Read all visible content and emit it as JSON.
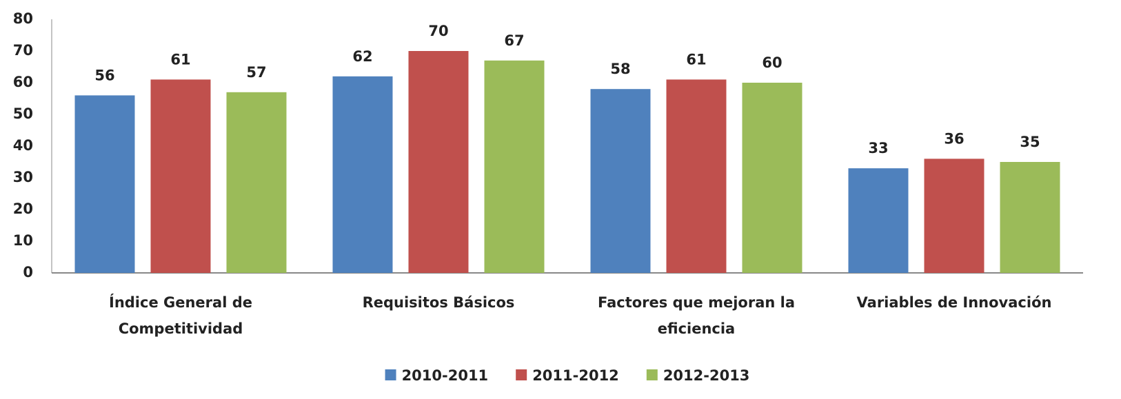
{
  "chart_data": {
    "type": "bar",
    "categories": [
      "Índice General de Competitividad",
      "Requisitos Básicos",
      "Factores que mejoran la eficiencia",
      "Variables de Innovación"
    ],
    "series": [
      {
        "name": "2010-2011",
        "color": "#4f81bd",
        "values": [
          56,
          62,
          58,
          33
        ]
      },
      {
        "name": "2011-2012",
        "color": "#c0504d",
        "values": [
          61,
          70,
          61,
          36
        ]
      },
      {
        "name": "2012-2013",
        "color": "#9bbb59",
        "values": [
          57,
          67,
          60,
          35
        ]
      }
    ],
    "ylim": [
      0,
      80
    ],
    "yticks": [
      0,
      10,
      20,
      30,
      40,
      50,
      60,
      70,
      80
    ],
    "grid": false,
    "legend": "bottom"
  }
}
